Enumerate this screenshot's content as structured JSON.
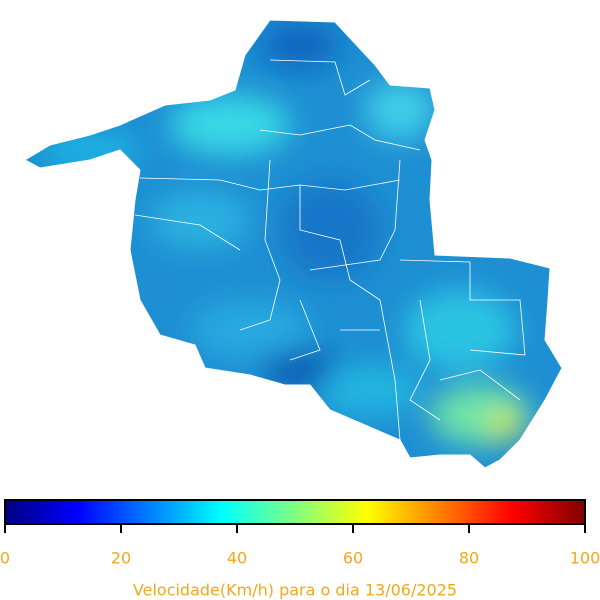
{
  "colorbar": {
    "label": "Velocidade(Km/h) para o dia 13/06/2025",
    "lim": [
      0,
      100
    ],
    "ticks": [
      0,
      20,
      40,
      60,
      80,
      100
    ]
  }
}
